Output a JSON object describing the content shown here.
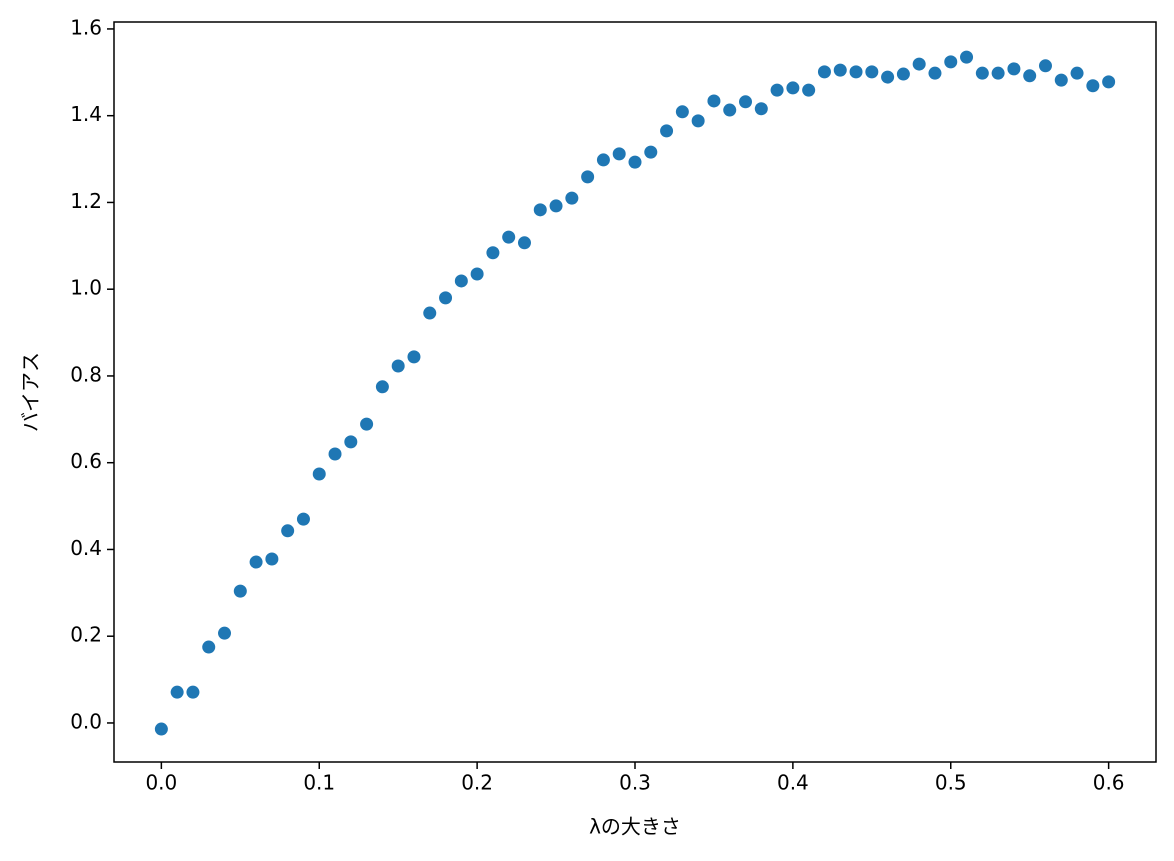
{
  "chart_data": {
    "type": "scatter",
    "xlabel": "λの大きさ",
    "ylabel": "バイアス",
    "color": "#1f77b4",
    "x": [
      0,
      0.01,
      0.02,
      0.03,
      0.04,
      0.05,
      0.06,
      0.07,
      0.08,
      0.09,
      0.1,
      0.11,
      0.12,
      0.13,
      0.14,
      0.15,
      0.16,
      0.17,
      0.18,
      0.19,
      0.2,
      0.21,
      0.22,
      0.23,
      0.24,
      0.25,
      0.26,
      0.27,
      0.28,
      0.29,
      0.3,
      0.31,
      0.32,
      0.33,
      0.34,
      0.35,
      0.36,
      0.37,
      0.38,
      0.39,
      0.4,
      0.41,
      0.42,
      0.43,
      0.44,
      0.45,
      0.46,
      0.47,
      0.48,
      0.49,
      0.5,
      0.51,
      0.52,
      0.53,
      0.54,
      0.55,
      0.56,
      0.57,
      0.58,
      0.59,
      0.6
    ],
    "values": [
      -0.014,
      0.071,
      0.071,
      0.175,
      0.207,
      0.304,
      0.371,
      0.378,
      0.443,
      0.47,
      0.574,
      0.62,
      0.648,
      0.689,
      0.775,
      0.823,
      0.844,
      0.945,
      0.98,
      1.019,
      1.035,
      1.084,
      1.12,
      1.107,
      1.183,
      1.192,
      1.21,
      1.259,
      1.298,
      1.312,
      1.293,
      1.316,
      1.365,
      1.409,
      1.388,
      1.434,
      1.413,
      1.432,
      1.416,
      1.459,
      1.464,
      1.459,
      1.501,
      1.505,
      1.501,
      1.501,
      1.489,
      1.496,
      1.519,
      1.498,
      1.524,
      1.535,
      1.498,
      1.498,
      1.508,
      1.492,
      1.515,
      1.482,
      1.498,
      1.469,
      1.478
    ],
    "xlim": [
      -0.03,
      0.63
    ],
    "ylim": [
      -0.09,
      1.616
    ],
    "xticks": [
      {
        "value": 0,
        "label": "0.0"
      },
      0.1,
      0.2,
      0.3,
      0.4,
      0.5,
      0.6
    ],
    "yticks": [
      {
        "value": 0,
        "label": "0.0"
      },
      0.2,
      0.4,
      0.6,
      0.8,
      {
        "value": 1,
        "label": "1.0"
      },
      1.2,
      1.4,
      1.6
    ],
    "grid": false
  }
}
